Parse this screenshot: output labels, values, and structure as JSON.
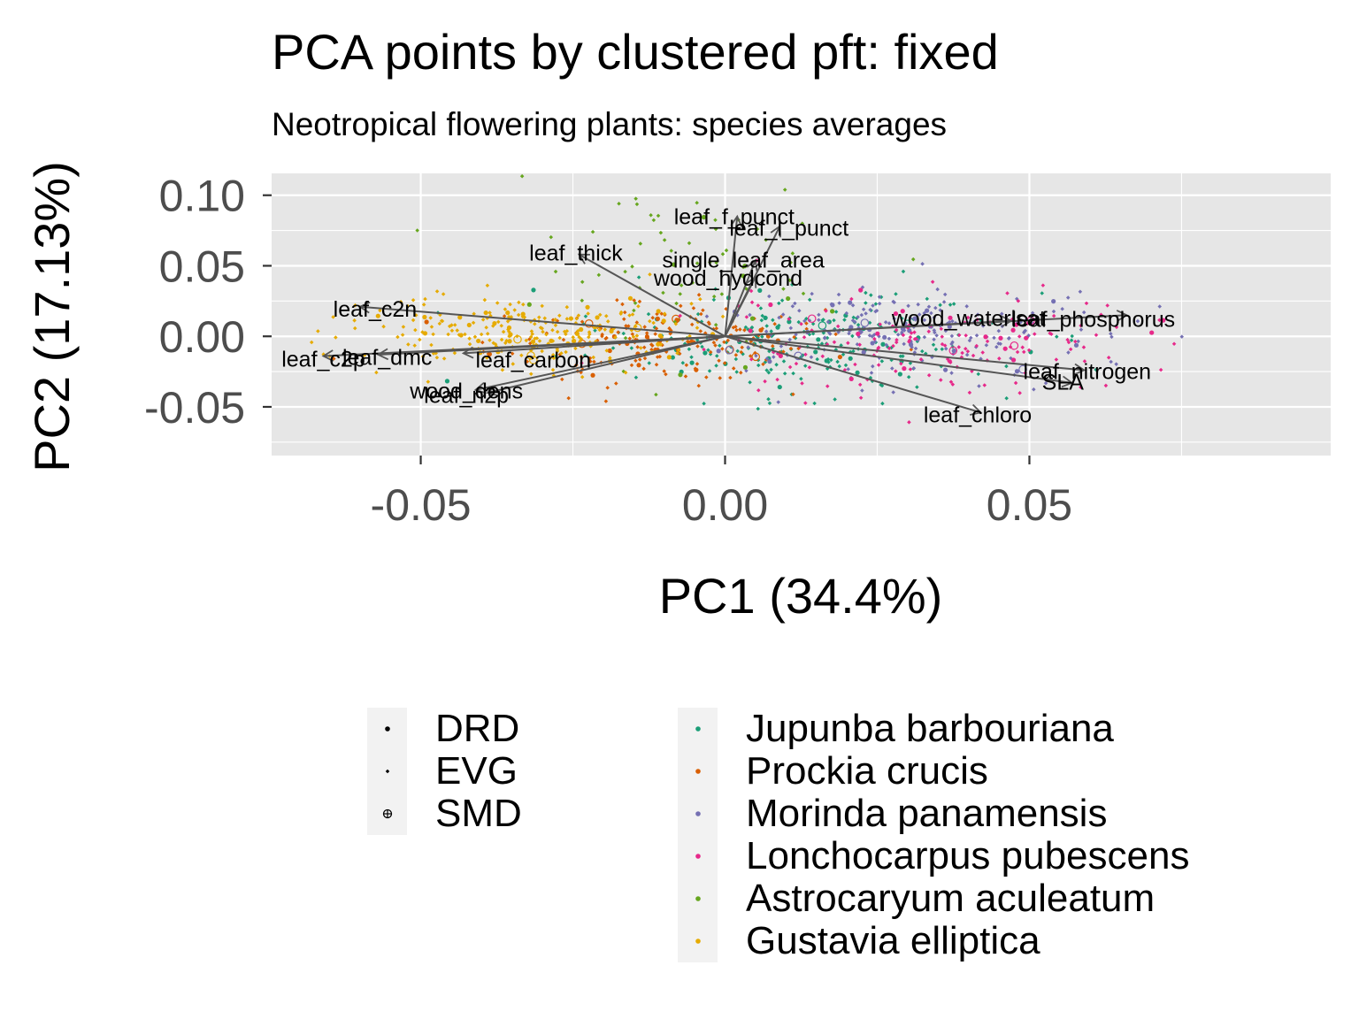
{
  "chart_data": {
    "type": "scatter",
    "title": "PCA points by clustered pft: fixed",
    "subtitle": "Neotropical flowering plants: species averages",
    "xlabel": "PC1 (34.4%)",
    "ylabel": "PC2 (17.13%)",
    "xlim": [
      -0.0745,
      0.0995
    ],
    "ylim": [
      -0.0845,
      0.1155
    ],
    "x_ticks": [
      {
        "value": -0.05,
        "label": "-0.05"
      },
      {
        "value": 0.0,
        "label": "0.00"
      },
      {
        "value": 0.05,
        "label": "0.05"
      }
    ],
    "y_ticks": [
      {
        "value": 0.1,
        "label": "0.10"
      },
      {
        "value": 0.05,
        "label": "0.05"
      },
      {
        "value": 0.0,
        "label": "0.00"
      },
      {
        "value": -0.05,
        "label": "-0.05"
      }
    ],
    "grid": true,
    "legend_position": "bottom",
    "colors": {
      "panel_background": "#e6e6e6",
      "grid": "#ffffff",
      "arrow": "#555555"
    },
    "shape_legend": [
      {
        "name": "DRD",
        "shape": "dot"
      },
      {
        "name": "EVG",
        "shape": "small-dot"
      },
      {
        "name": "SMD",
        "shape": "circle-plus"
      }
    ],
    "series": [
      {
        "name": "Jupunba barbouriana",
        "color": "#1b9e77",
        "center": [
          0.012,
          -0.004
        ],
        "spread": [
          0.017,
          0.018
        ]
      },
      {
        "name": "Prockia crucis",
        "color": "#d95f02",
        "center": [
          -0.012,
          -0.004
        ],
        "spread": [
          0.013,
          0.014
        ]
      },
      {
        "name": "Morinda panamensis",
        "color": "#7570b3",
        "center": [
          0.028,
          0.004
        ],
        "spread": [
          0.017,
          0.015
        ]
      },
      {
        "name": "Lonchocarpus pubescens",
        "color": "#e7298a",
        "center": [
          0.033,
          -0.006
        ],
        "spread": [
          0.018,
          0.017
        ]
      },
      {
        "name": "Astrocaryum aculeatum",
        "color": "#66a61e",
        "center": [
          -0.004,
          0.045
        ],
        "spread": [
          0.014,
          0.033
        ]
      },
      {
        "name": "Gustavia elliptica",
        "color": "#e6ab02",
        "center": [
          -0.031,
          0.003
        ],
        "spread": [
          0.014,
          0.012
        ]
      }
    ],
    "loadings": [
      {
        "name": "leaf_f_punct",
        "x": 0.002,
        "y": 0.085,
        "label_x": 0.0015,
        "label_y": 0.085
      },
      {
        "name": "leaf_l_punct",
        "x": 0.009,
        "y": 0.078,
        "label_x": 0.0105,
        "label_y": 0.077
      },
      {
        "name": "leaf_thick",
        "x": -0.024,
        "y": 0.058,
        "label_x": -0.0245,
        "label_y": 0.0595
      },
      {
        "name": "single_leaf_area",
        "x": 0.005,
        "y": 0.054,
        "label_x": 0.003,
        "label_y": 0.0545
      },
      {
        "name": "wood_hydcond",
        "x": 0.005,
        "y": 0.042,
        "label_x": 0.0005,
        "label_y": 0.0415
      },
      {
        "name": "leaf_c2n",
        "x": -0.06,
        "y": 0.021,
        "label_x": -0.0575,
        "label_y": 0.0195
      },
      {
        "name": "leaf_c2p",
        "x": -0.066,
        "y": -0.014,
        "label_x": -0.066,
        "label_y": -0.016
      },
      {
        "name": "leaf_dmc",
        "x": -0.057,
        "y": -0.013,
        "label_x": -0.0555,
        "label_y": -0.0145
      },
      {
        "name": "leaf_carbon",
        "x": -0.043,
        "y": -0.012,
        "label_x": -0.0315,
        "label_y": -0.0165
      },
      {
        "name": "wood_dens",
        "x": -0.041,
        "y": -0.038,
        "label_x": -0.0425,
        "label_y": -0.0385
      },
      {
        "name": "leaf_n2p",
        "x": -0.039,
        "y": -0.04,
        "label_x": -0.0425,
        "label_y": -0.0415
      },
      {
        "name": "wood_waterlsat",
        "x": 0.047,
        "y": 0.011,
        "label_x": 0.04,
        "label_y": 0.013
      },
      {
        "name": "leaf_phosphorus",
        "x": 0.066,
        "y": 0.015,
        "label_x": 0.0605,
        "label_y": 0.0125
      },
      {
        "name": "leaf_nitrogen",
        "x": 0.059,
        "y": -0.024,
        "label_x": 0.0595,
        "label_y": -0.0245
      },
      {
        "name": "SLA",
        "x": 0.057,
        "y": -0.033,
        "label_x": 0.0555,
        "label_y": -0.032
      },
      {
        "name": "leaf_chloro",
        "x": 0.042,
        "y": -0.054,
        "label_x": 0.0415,
        "label_y": -0.0555
      }
    ]
  }
}
